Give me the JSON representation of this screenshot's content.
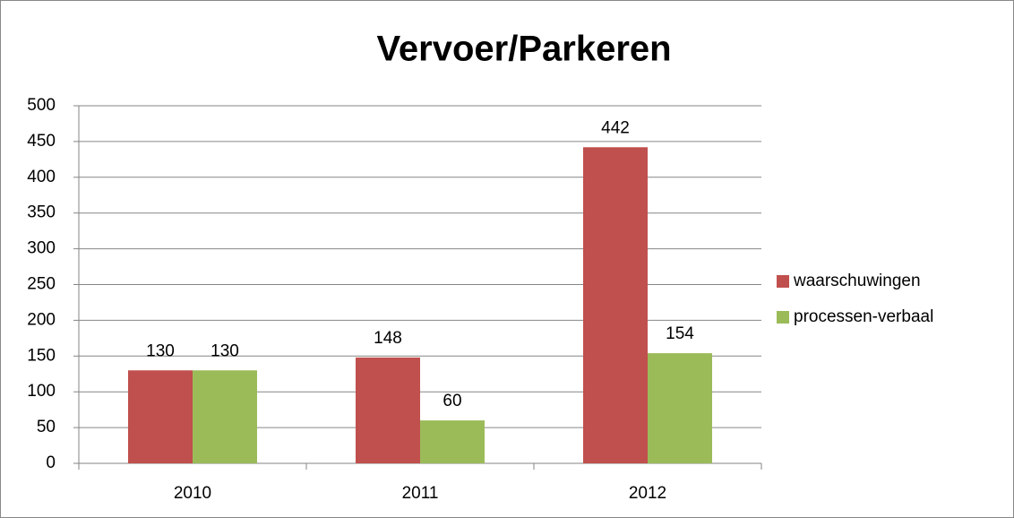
{
  "chart_data": {
    "type": "bar",
    "title": "Vervoer/Parkeren",
    "categories": [
      "2010",
      "2011",
      "2012"
    ],
    "series": [
      {
        "name": "waarschuwingen",
        "color": "#c0504d",
        "values": [
          130,
          148,
          442
        ]
      },
      {
        "name": "processen-verbaal",
        "color": "#9bbb59",
        "values": [
          130,
          60,
          154
        ]
      }
    ],
    "ylim": [
      0,
      500
    ],
    "yticks": [
      0,
      50,
      100,
      150,
      200,
      250,
      300,
      350,
      400,
      450,
      500
    ],
    "grid": true,
    "legend": "right"
  }
}
